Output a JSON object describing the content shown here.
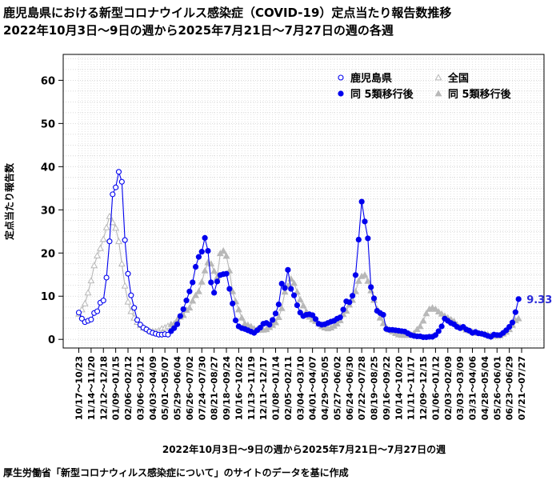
{
  "header": {
    "title_line1": "鹿児島県における新型コロナウイルス感染症（COVID-19）定点当たり報告数推移",
    "title_line2": "2022年10月3日～9日の週から2025年7月21日～7月27日の週の各週"
  },
  "footer": {
    "source": "厚生労働省「新型コロナウィルス感染症について」のサイトのデータを基に作成"
  },
  "chart_data": {
    "type": "line",
    "title": "鹿児島県における新型コロナウイルス感染症（COVID-19）定点当たり報告数推移",
    "ylabel": "定点当たり報告数",
    "xlabel": "2022年10月3日～9日の週から2025年7月21日～7月27日の週",
    "ylim": [
      -2,
      66
    ],
    "yticks": [
      0,
      10,
      20,
      30,
      40,
      50,
      60
    ],
    "xtick_labels": [
      "10/17～10/23",
      "11/14～11/20",
      "12/12～12/18",
      "01/09～01/15",
      "02/06～02/12",
      "03/06～03/12",
      "04/03～04/09",
      "05/01～05/07",
      "05/29～06/04",
      "06/26～07/02",
      "07/24～07/30",
      "08/21～08/27",
      "09/18～09/24",
      "10/16～10/22",
      "11/13～11/19",
      "12/11～12/17",
      "01/08～01/14",
      "02/05～02/11",
      "03/04～03/10",
      "04/01～04/07",
      "04/29～05/05",
      "05/27～06/02",
      "06/24～06/30",
      "07/22～07/28",
      "08/19～08/25",
      "09/16～09/22",
      "10/14～10/20",
      "11/11～11/17",
      "12/09～12/15",
      "01/06～01/12",
      "02/03～02/09",
      "03/03～03/09",
      "03/31～04/06",
      "04/28～05/04",
      "05/26～06/01",
      "06/23～06/29",
      "07/21～07/27"
    ],
    "grid": true,
    "legend_position": "top-right",
    "series": [
      {
        "name": "鹿児島県",
        "color": "#0000ee",
        "marker": "open-circle",
        "values": [
          6.2,
          4.8,
          4.0,
          4.3,
          4.6,
          6.1,
          6.5,
          8.5,
          9.0,
          14.3,
          22.7,
          33.6,
          35.2,
          38.8,
          36.5,
          23.0,
          15.2,
          10.2,
          7.3,
          4.5,
          3.4,
          2.7,
          2.3,
          1.8,
          1.5,
          1.3,
          1.1,
          1.1,
          1.2,
          1.1
        ]
      },
      {
        "name": "同 5類移行後",
        "color": "#0000ee",
        "marker": "filled-circle",
        "values": [
          1.9,
          2.6,
          3.5,
          5.4,
          7.0,
          9.0,
          11.1,
          13.2,
          16.8,
          19.1,
          20.3,
          23.5,
          20.5,
          13.2,
          10.8,
          13.4,
          14.9,
          15.1,
          15.2,
          11.7,
          8.3,
          4.4,
          3.0,
          2.6,
          2.4,
          2.1,
          1.8,
          1.5,
          2.1,
          2.7,
          3.6,
          3.8,
          3.4,
          4.5,
          6.0,
          8.1,
          12.9,
          11.9,
          16.1,
          11.7,
          10.2,
          7.9,
          6.2,
          5.4,
          5.7,
          5.8,
          5.6,
          4.7,
          3.6,
          3.4,
          3.5,
          3.8,
          4.1,
          4.3,
          4.8,
          5.1,
          6.9,
          8.8,
          8.6,
          10.1,
          14.9,
          23.1,
          31.9,
          27.3,
          23.4,
          12.1,
          9.5,
          6.6,
          6.1,
          5.7,
          2.4,
          2.2,
          2.2,
          2.1,
          2.0,
          1.9,
          1.8,
          1.4,
          1.0,
          0.8,
          0.7,
          0.7,
          0.5,
          0.5,
          0.6,
          0.6,
          1.0,
          1.9,
          3.0,
          4.8,
          4.3,
          3.8,
          3.5,
          2.9,
          2.6,
          2.9,
          2.3,
          2.0,
          1.5,
          1.7,
          1.4,
          1.3,
          1.1,
          0.8,
          0.6,
          1.1,
          1.0,
          1.0,
          1.5,
          2.1,
          2.9,
          3.9,
          6.3,
          9.33
        ]
      },
      {
        "name": "全国",
        "color": "#b8b8b8",
        "marker": "open-triangle",
        "values": [
          5.9,
          6.9,
          8.3,
          10.8,
          13.6,
          17.1,
          19.4,
          21.1,
          23.2,
          25.9,
          28.5,
          27.1,
          25.8,
          22.7,
          17.5,
          12.4,
          8.7,
          6.5,
          5.0,
          4.0,
          3.3,
          2.7,
          2.4,
          2.0,
          1.9,
          1.8,
          2.0,
          2.5,
          2.7,
          3.1
        ]
      },
      {
        "name": "同 5類移行後",
        "color": "#b8b8b8",
        "marker": "filled-triangle",
        "values": [
          3.5,
          3.6,
          4.5,
          5.2,
          5.6,
          6.8,
          7.3,
          8.9,
          10.2,
          11.1,
          13.3,
          15.9,
          17.8,
          17.5,
          15.8,
          14.4,
          19.9,
          20.5,
          19.3,
          15.9,
          11.1,
          8.8,
          6.9,
          5.0,
          3.6,
          3.3,
          3.0,
          2.5,
          2.3,
          2.2,
          2.2,
          2.3,
          2.8,
          3.3,
          3.9,
          5.1,
          7.2,
          11.0,
          12.4,
          14.0,
          13.0,
          11.0,
          9.2,
          7.8,
          6.4,
          5.2,
          4.6,
          4.2,
          3.6,
          3.0,
          2.7,
          2.5,
          2.7,
          3.1,
          3.6,
          4.4,
          5.8,
          6.6,
          8.0,
          9.1,
          11.1,
          13.5,
          14.6,
          14.9,
          13.5,
          11.3,
          9.1,
          7.0,
          5.0,
          3.7,
          2.8,
          2.2,
          1.8,
          1.4,
          1.1,
          1.0,
          1.0,
          1.0,
          1.1,
          1.4,
          2.3,
          3.0,
          4.3,
          6.0,
          7.0,
          7.3,
          7.0,
          6.4,
          5.9,
          5.4,
          5.0,
          4.6,
          4.2,
          3.4,
          2.9,
          2.6,
          2.2,
          2.0,
          1.7,
          1.5,
          1.4,
          1.4,
          1.3,
          1.1,
          0.9,
          0.8,
          0.8,
          0.9,
          1.3,
          1.7,
          2.3,
          3.3,
          4.4,
          4.8
        ]
      }
    ],
    "annotation": "9.33"
  }
}
